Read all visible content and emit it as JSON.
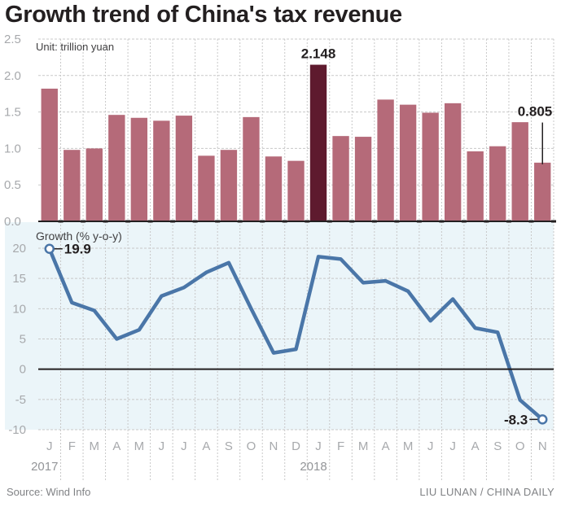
{
  "title": "Growth trend of China's tax revenue",
  "footer": {
    "source": "Source: Wind Info",
    "credit": "LIU LUNAN / CHINA DAILY"
  },
  "colors": {
    "bar": "#b56a79",
    "bar_highlight": "#5e1a2e",
    "line": "#4a76a8",
    "line_panel_bg": "#ebf5f9",
    "grid": "#c8c8c8",
    "axis": "#231f20"
  },
  "chart_data": [
    {
      "type": "bar",
      "title": "Tax revenue",
      "unit_label": "Unit: trillion yuan",
      "xlabel": "",
      "ylabel": "",
      "ylim": [
        0,
        2.5
      ],
      "yticks": [
        "0.0",
        "0.5",
        "1.0",
        "1.5",
        "2.0",
        "2.5"
      ],
      "ytick_values": [
        0,
        0.5,
        1.0,
        1.5,
        2.0,
        2.5
      ],
      "grid": true,
      "categories": [
        "J",
        "F",
        "M",
        "A",
        "M",
        "J",
        "J",
        "A",
        "S",
        "O",
        "N",
        "D",
        "J",
        "F",
        "M",
        "A",
        "M",
        "J",
        "J",
        "A",
        "S",
        "O",
        "N"
      ],
      "years": [
        {
          "label": "2017",
          "index": 0
        },
        {
          "label": "2018",
          "index": 12
        }
      ],
      "values": [
        1.82,
        0.98,
        1.0,
        1.46,
        1.42,
        1.38,
        1.45,
        0.9,
        0.98,
        1.43,
        0.89,
        0.83,
        2.148,
        1.17,
        1.16,
        1.67,
        1.6,
        1.49,
        1.62,
        0.96,
        1.03,
        1.36,
        0.805
      ],
      "highlight_index": 12,
      "annotations": [
        {
          "index": 12,
          "text": "2.148"
        },
        {
          "index": 22,
          "text": "0.805"
        }
      ]
    },
    {
      "type": "line",
      "title": "Growth (% y-o-y)",
      "xlabel": "",
      "ylabel": "",
      "ylim": [
        -10,
        20
      ],
      "yticks": [
        "-10",
        "-5",
        "0",
        "5",
        "10",
        "15",
        "20"
      ],
      "ytick_values": [
        -10,
        -5,
        0,
        5,
        10,
        15,
        20
      ],
      "grid": true,
      "categories": [
        "J",
        "F",
        "M",
        "A",
        "M",
        "J",
        "J",
        "A",
        "S",
        "O",
        "N",
        "D",
        "J",
        "F",
        "M",
        "A",
        "M",
        "J",
        "J",
        "A",
        "S",
        "O",
        "N"
      ],
      "series": [
        {
          "name": "Growth (% y-o-y)",
          "values": [
            19.9,
            11.0,
            9.7,
            5.0,
            6.5,
            12.1,
            13.5,
            16.0,
            17.6,
            10.0,
            2.7,
            3.3,
            18.6,
            18.2,
            14.3,
            14.6,
            12.9,
            8.0,
            11.6,
            6.8,
            6.1,
            -5.1,
            -8.3
          ]
        }
      ],
      "annotations": [
        {
          "index": 0,
          "text": "19.9"
        },
        {
          "index": 22,
          "text": "-8.3"
        }
      ]
    }
  ]
}
